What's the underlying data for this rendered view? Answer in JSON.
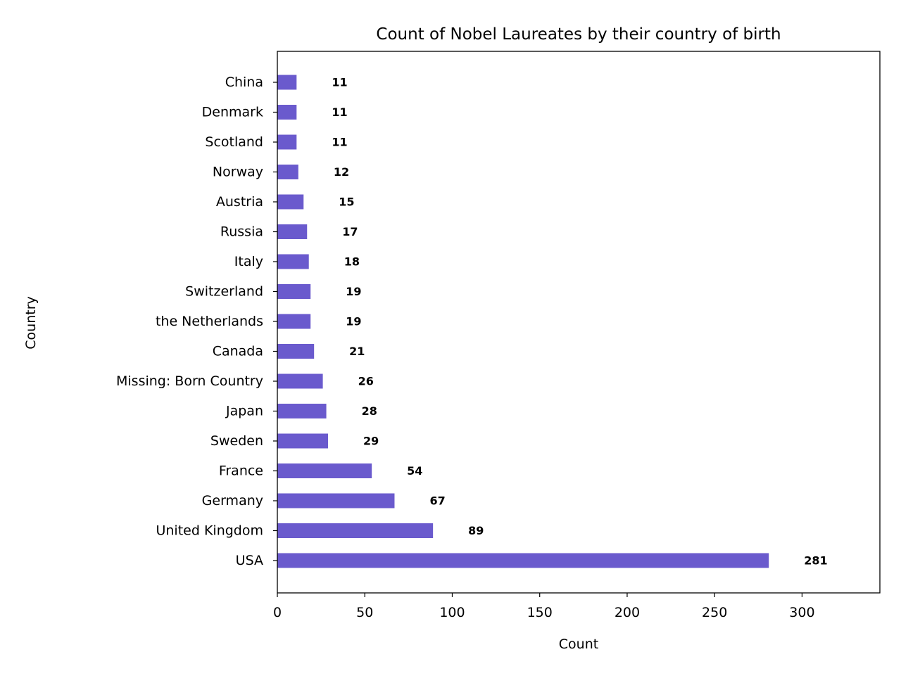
{
  "chart_data": {
    "type": "bar",
    "orientation": "horizontal",
    "title": "Count of Nobel Laureates by their country of birth",
    "xlabel": "Count",
    "ylabel": "Country",
    "categories": [
      "USA",
      "United Kingdom",
      "Germany",
      "France",
      "Sweden",
      "Japan",
      "Missing: Born Country",
      "Canada",
      "the Netherlands",
      "Switzerland",
      "Italy",
      "Russia",
      "Austria",
      "Norway",
      "Scotland",
      "Denmark",
      "China"
    ],
    "values": [
      281,
      89,
      67,
      54,
      29,
      28,
      26,
      21,
      19,
      19,
      18,
      17,
      15,
      12,
      11,
      11,
      11
    ],
    "data_labels": [
      "281",
      "89",
      "67",
      "54",
      "29",
      "28",
      "26",
      "21",
      "19",
      "19",
      "18",
      "17",
      "15",
      "12",
      "11",
      "11",
      "11"
    ],
    "xlim": [
      0,
      344.5
    ],
    "xticks": [
      0,
      50,
      100,
      150,
      200,
      250,
      300
    ],
    "xtick_labels": [
      "0",
      "50",
      "100",
      "150",
      "200",
      "250",
      "300"
    ],
    "grid": false,
    "legend": "none",
    "bar_color": "#6a5acd"
  }
}
